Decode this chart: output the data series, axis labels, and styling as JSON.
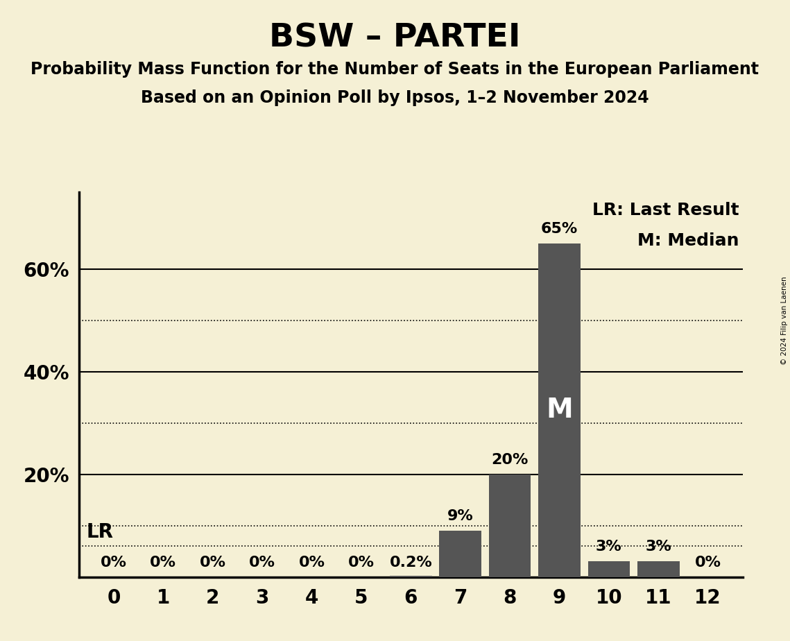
{
  "title": "BSW – PARTEI",
  "subtitle1": "Probability Mass Function for the Number of Seats in the European Parliament",
  "subtitle2": "Based on an Opinion Poll by Ipsos, 1–2 November 2024",
  "copyright": "© 2024 Filip van Laenen",
  "seats": [
    0,
    1,
    2,
    3,
    4,
    5,
    6,
    7,
    8,
    9,
    10,
    11,
    12
  ],
  "probabilities": [
    0.0,
    0.0,
    0.0,
    0.0,
    0.0,
    0.0,
    0.2,
    9.0,
    20.0,
    65.0,
    3.0,
    3.0,
    0.0
  ],
  "bar_color": "#555555",
  "background_color": "#f5f0d5",
  "median_seat": 9,
  "lr_value": 6.0,
  "solid_gridlines": [
    20,
    40,
    60
  ],
  "dotted_gridlines": [
    10,
    30,
    50
  ],
  "lr_dotted_line": 6.0,
  "ylim": [
    0,
    75
  ],
  "xlim": [
    -0.7,
    12.7
  ],
  "legend_lr": "LR: Last Result",
  "legend_m": "M: Median",
  "title_fontsize": 34,
  "subtitle_fontsize": 17,
  "tick_fontsize": 20,
  "label_fontsize": 16,
  "legend_fontsize": 18,
  "m_fontsize": 28
}
